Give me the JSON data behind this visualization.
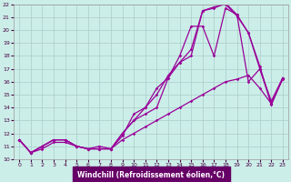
{
  "xlabel": "Windchill (Refroidissement éolien,°C)",
  "bg_color": "#cceee8",
  "grid_color": "#aacccc",
  "line_color": "#990099",
  "xlabel_bg": "#660066",
  "xlabel_fg": "#ffffff",
  "tick_color": "#440044",
  "xlim": [
    -0.5,
    23.5
  ],
  "ylim": [
    10,
    22
  ],
  "xticks": [
    0,
    1,
    2,
    3,
    4,
    5,
    6,
    7,
    8,
    9,
    10,
    11,
    12,
    13,
    14,
    15,
    16,
    17,
    18,
    19,
    20,
    21,
    22,
    23
  ],
  "yticks": [
    10,
    11,
    12,
    13,
    14,
    15,
    16,
    17,
    18,
    19,
    20,
    21,
    22
  ],
  "lines": [
    {
      "x": [
        0,
        1,
        2,
        3,
        4,
        5,
        6,
        7,
        8,
        9,
        10,
        11,
        12,
        13,
        14,
        15,
        16,
        17,
        18,
        19,
        20,
        21,
        22,
        23
      ],
      "y": [
        11.5,
        10.5,
        11.0,
        11.5,
        11.5,
        11.0,
        10.8,
        11.0,
        10.8,
        12.0,
        13.0,
        13.5,
        14.0,
        16.3,
        17.5,
        18.0,
        21.5,
        21.7,
        22.1,
        21.2,
        19.8,
        17.2,
        14.2,
        16.3
      ]
    },
    {
      "x": [
        0,
        1,
        2,
        3,
        4,
        5,
        6,
        7,
        8,
        9,
        10,
        11,
        12,
        13,
        14,
        15,
        16,
        17,
        18,
        19,
        20,
        21,
        22,
        23
      ],
      "y": [
        11.5,
        10.5,
        11.0,
        11.5,
        11.5,
        11.0,
        10.8,
        10.8,
        10.8,
        12.0,
        13.0,
        14.0,
        15.5,
        16.3,
        18.0,
        20.3,
        20.3,
        18.0,
        21.7,
        21.2,
        16.0,
        17.0,
        14.3,
        16.3
      ]
    },
    {
      "x": [
        0,
        1,
        2,
        3,
        4,
        5,
        6,
        7,
        8,
        9,
        10,
        11,
        12,
        13,
        14,
        15,
        16,
        17,
        18,
        19,
        20,
        21,
        22,
        23
      ],
      "y": [
        11.5,
        10.5,
        10.8,
        11.3,
        11.3,
        11.0,
        10.8,
        10.8,
        10.8,
        11.5,
        12.0,
        12.5,
        13.0,
        13.5,
        14.0,
        14.5,
        15.0,
        15.5,
        16.0,
        16.2,
        16.5,
        15.5,
        14.3,
        16.2
      ]
    },
    {
      "x": [
        0,
        1,
        2,
        3,
        4,
        5,
        6,
        7,
        8,
        9,
        10,
        11,
        12,
        13,
        14,
        15,
        16,
        17,
        18,
        19,
        20,
        21,
        22,
        23
      ],
      "y": [
        11.5,
        10.5,
        11.0,
        11.5,
        11.5,
        11.0,
        10.8,
        10.8,
        10.8,
        11.8,
        13.5,
        14.0,
        15.0,
        16.5,
        17.5,
        18.5,
        21.5,
        21.8,
        22.0,
        21.1,
        19.8,
        17.0,
        14.5,
        16.3
      ]
    }
  ]
}
